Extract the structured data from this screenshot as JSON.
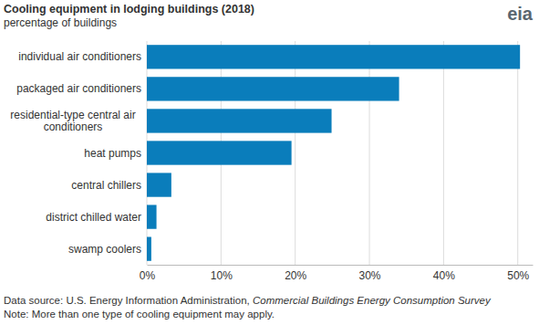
{
  "chart_data": {
    "type": "bar",
    "orientation": "horizontal",
    "title": "Cooling equipment in lodging buildings (2018)",
    "subtitle": "percentage of buildings",
    "logo": "eia",
    "categories": [
      "individual air conditioners",
      "packaged air conditioners",
      "residential-type central air conditioners",
      "heat pumps",
      "central chillers",
      "district chilled water",
      "swamp coolers"
    ],
    "values": [
      50.3,
      34.0,
      24.9,
      19.5,
      3.3,
      1.3,
      0.6
    ],
    "color": "#0a7dbb",
    "xlim": [
      0,
      52
    ],
    "xticks": [
      {
        "value": 0,
        "label": "0%"
      },
      {
        "value": 10,
        "label": "10%"
      },
      {
        "value": 20,
        "label": "20%"
      },
      {
        "value": 30,
        "label": "30%"
      },
      {
        "value": 40,
        "label": "40%"
      },
      {
        "value": 50,
        "label": "50%"
      }
    ],
    "grid": true,
    "source": "Data source: U.S. Energy Information Administration, ",
    "source_title": "Commercial Buildings Energy Consumption Survey",
    "note": "Note: More than one type of cooling equipment may apply."
  }
}
